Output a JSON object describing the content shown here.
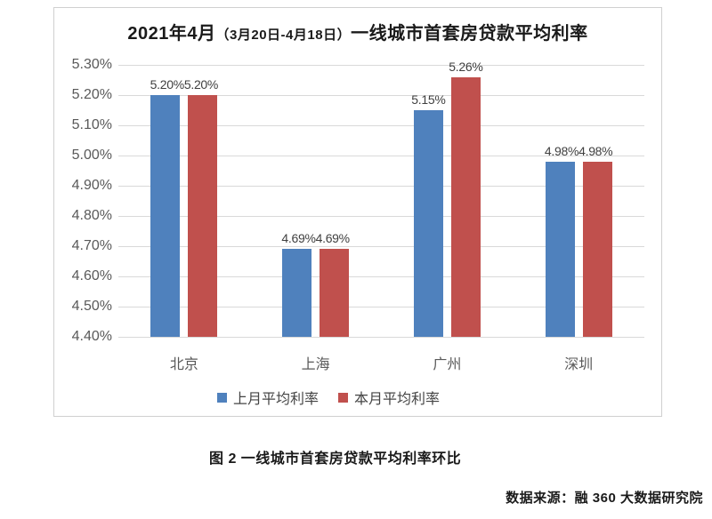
{
  "chart_data": {
    "type": "bar",
    "title": "2021年4月（3月20日-4月18日）一线城市首套房贷款平均利率",
    "title_parts": {
      "prefix": "2021年4月",
      "paren": "（3月20日-4月18日）",
      "suffix": "一线城市首套房贷款平均利率"
    },
    "categories": [
      "北京",
      "上海",
      "广州",
      "深圳"
    ],
    "series": [
      {
        "name": "上月平均利率",
        "color": "#4F81BD",
        "values": [
          5.2,
          4.69,
          5.15,
          4.98
        ],
        "labels": [
          "5.20%",
          "4.69%",
          "5.15%",
          "4.98%"
        ]
      },
      {
        "name": "本月平均利率",
        "color": "#C0504D",
        "values": [
          5.2,
          4.69,
          5.26,
          4.98
        ],
        "labels": [
          "5.20%",
          "4.69%",
          "5.26%",
          "4.98%"
        ]
      }
    ],
    "ylim": [
      4.4,
      5.3
    ],
    "y_ticks": [
      "5.30%",
      "5.20%",
      "5.10%",
      "5.00%",
      "4.90%",
      "4.80%",
      "4.70%",
      "4.60%",
      "4.50%",
      "4.40%"
    ],
    "xlabel": "",
    "ylabel": "",
    "grid": true,
    "legend_position": "bottom"
  },
  "caption": "图 2  一线城市首套房贷款平均利率环比",
  "source": "数据来源：融 360 大数据研究院",
  "colors": {
    "series_blue": "#4F81BD",
    "series_red": "#C0504D",
    "gridline": "#D9D9D9",
    "frame_border": "#D0D0D0",
    "axis_text": "#595959",
    "label_text": "#3F3F3F"
  }
}
